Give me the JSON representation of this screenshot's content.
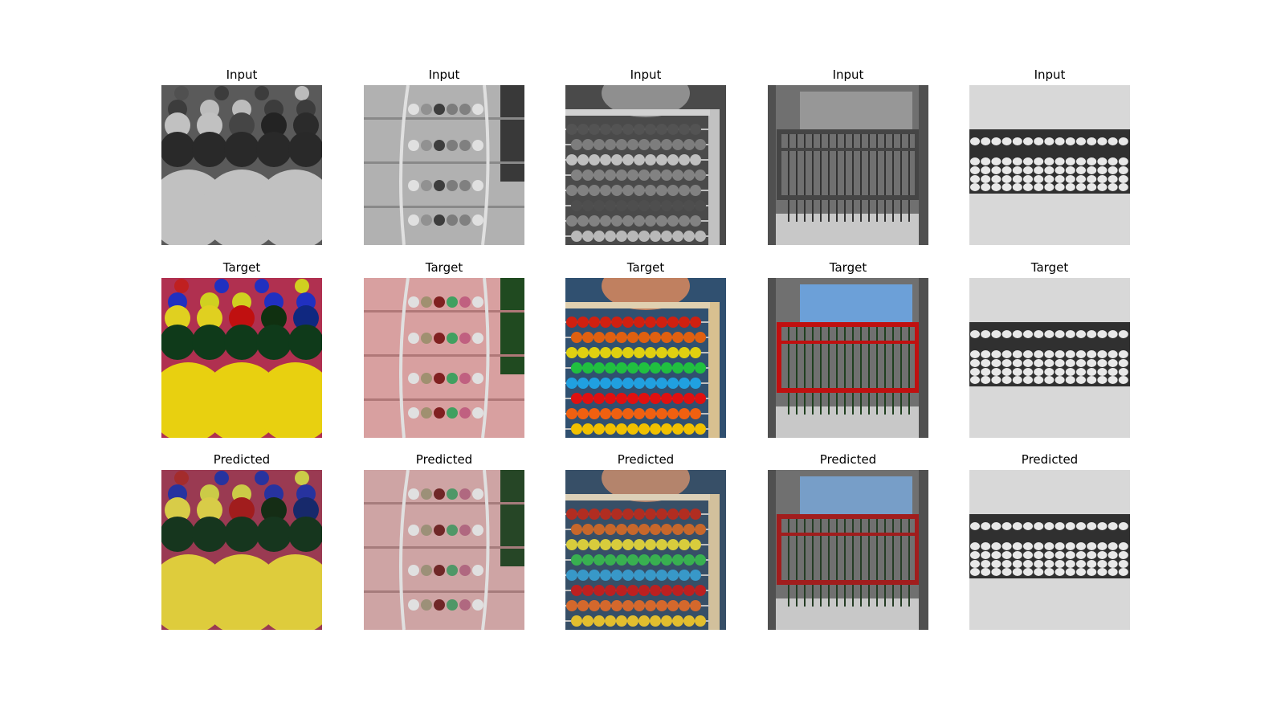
{
  "grid": [
    [
      "Input",
      "Input",
      "Input",
      "Input",
      "Input"
    ],
    [
      "Target",
      "Target",
      "Target",
      "Target",
      "Target"
    ],
    [
      "Predicted",
      "Predicted",
      "Predicted",
      "Predicted",
      "Predicted"
    ]
  ]
}
